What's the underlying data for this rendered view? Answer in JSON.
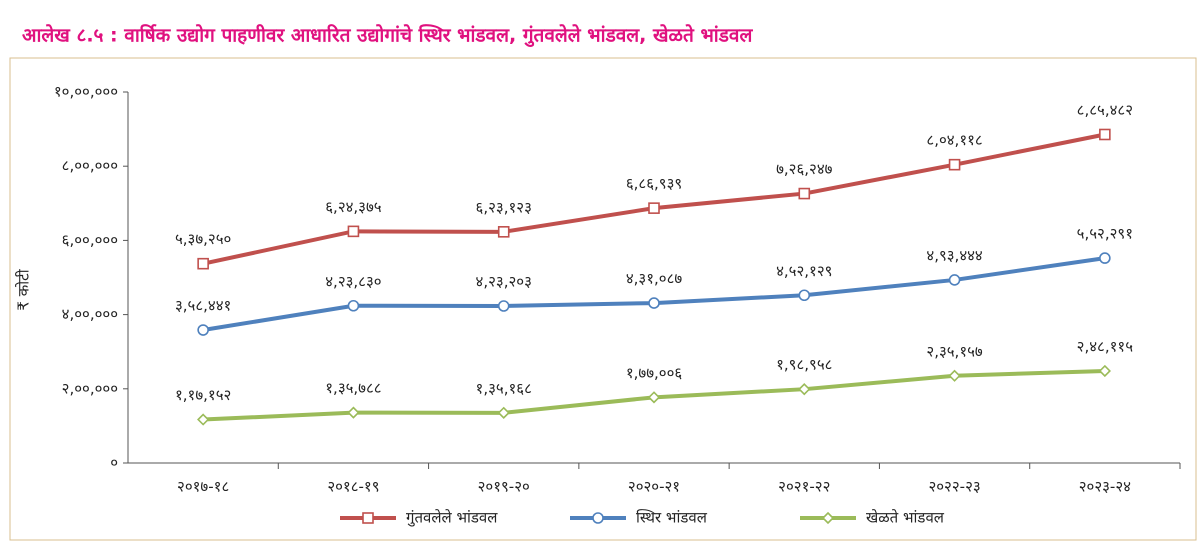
{
  "chart_data": {
    "type": "line",
    "title": "आलेख ८.५ : वार्षिक उद्योग पाहणीवर आधारित उद्योगांचे स्थिर भांडवल, गुंतवलेले भांडवल, खेळते भांडवल",
    "ylabel": "₹ कोटी",
    "categories": [
      "२०१७-१८",
      "२०१८-१९",
      "२०१९-२०",
      "२०२०-२१",
      "२०२१-२२",
      "२०२२-२३",
      "२०२३-२४"
    ],
    "ylim": [
      0,
      1000000
    ],
    "yticks": [
      {
        "value": 0,
        "label": "०"
      },
      {
        "value": 200000,
        "label": "२,००,०००"
      },
      {
        "value": 400000,
        "label": "४,००,०००"
      },
      {
        "value": 600000,
        "label": "६,००,०००"
      },
      {
        "value": 800000,
        "label": "८,००,०००"
      },
      {
        "value": 1000000,
        "label": "१०,००,०००"
      }
    ],
    "legend": "bottom",
    "series": [
      {
        "name": "गुंतवलेले भांडवल",
        "color": "#c0504d",
        "marker": "square",
        "values": [
          537250,
          624375,
          623123,
          686939,
          726247,
          804118,
          885482
        ],
        "value_labels": [
          "५,३७,२५०",
          "६,२४,३७५",
          "६,२३,१२३",
          "६,८६,९३९",
          "७,२६,२४७",
          "८,०४,११८",
          "८,८५,४८२"
        ]
      },
      {
        "name": "स्थिर भांडवल",
        "color": "#4f81bd",
        "marker": "circle",
        "values": [
          358441,
          423830,
          423203,
          431087,
          452129,
          493444,
          552291
        ],
        "value_labels": [
          "३,५८,४४१",
          "४,२३,८३०",
          "४,२३,२०३",
          "४,३१,०८७",
          "४,५२,१२९",
          "४,९३,४४४",
          "५,५२,२९१"
        ]
      },
      {
        "name": "खेळते भांडवल",
        "color": "#9bbb59",
        "marker": "diamond",
        "values": [
          117152,
          135788,
          135168,
          177006,
          198958,
          235157,
          248115
        ],
        "value_labels": [
          "१,१७,१५२",
          "१,३५,७८८",
          "१,३५,१६८",
          "१,७७,००६",
          "१,९८,९५८",
          "२,३५,१५७",
          "२,४८,११५"
        ]
      }
    ]
  }
}
